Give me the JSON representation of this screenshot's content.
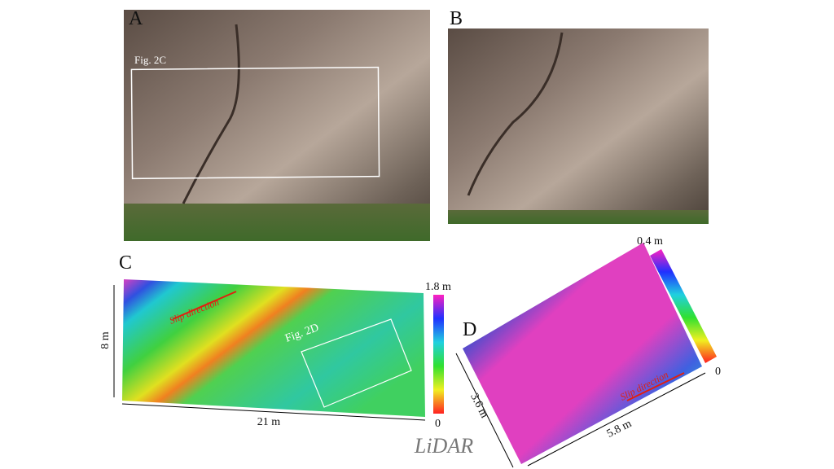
{
  "panels": {
    "a": {
      "label": "A",
      "inset_label": "Fig. 2C"
    },
    "b": {
      "label": "B"
    },
    "c": {
      "label": "C",
      "colorbar_max": "1.8 m",
      "colorbar_min": "0",
      "arrow_label": "Slip direction",
      "inset_label": "Fig. 2D",
      "height": "8 m",
      "width": "21 m"
    },
    "d": {
      "label": "D",
      "colorbar_max": "0.4 m",
      "colorbar_min": "0",
      "arrow_label": "Slip direction",
      "height": "3.6 m",
      "width": "5.8 m"
    }
  },
  "caption": "LiDAR"
}
